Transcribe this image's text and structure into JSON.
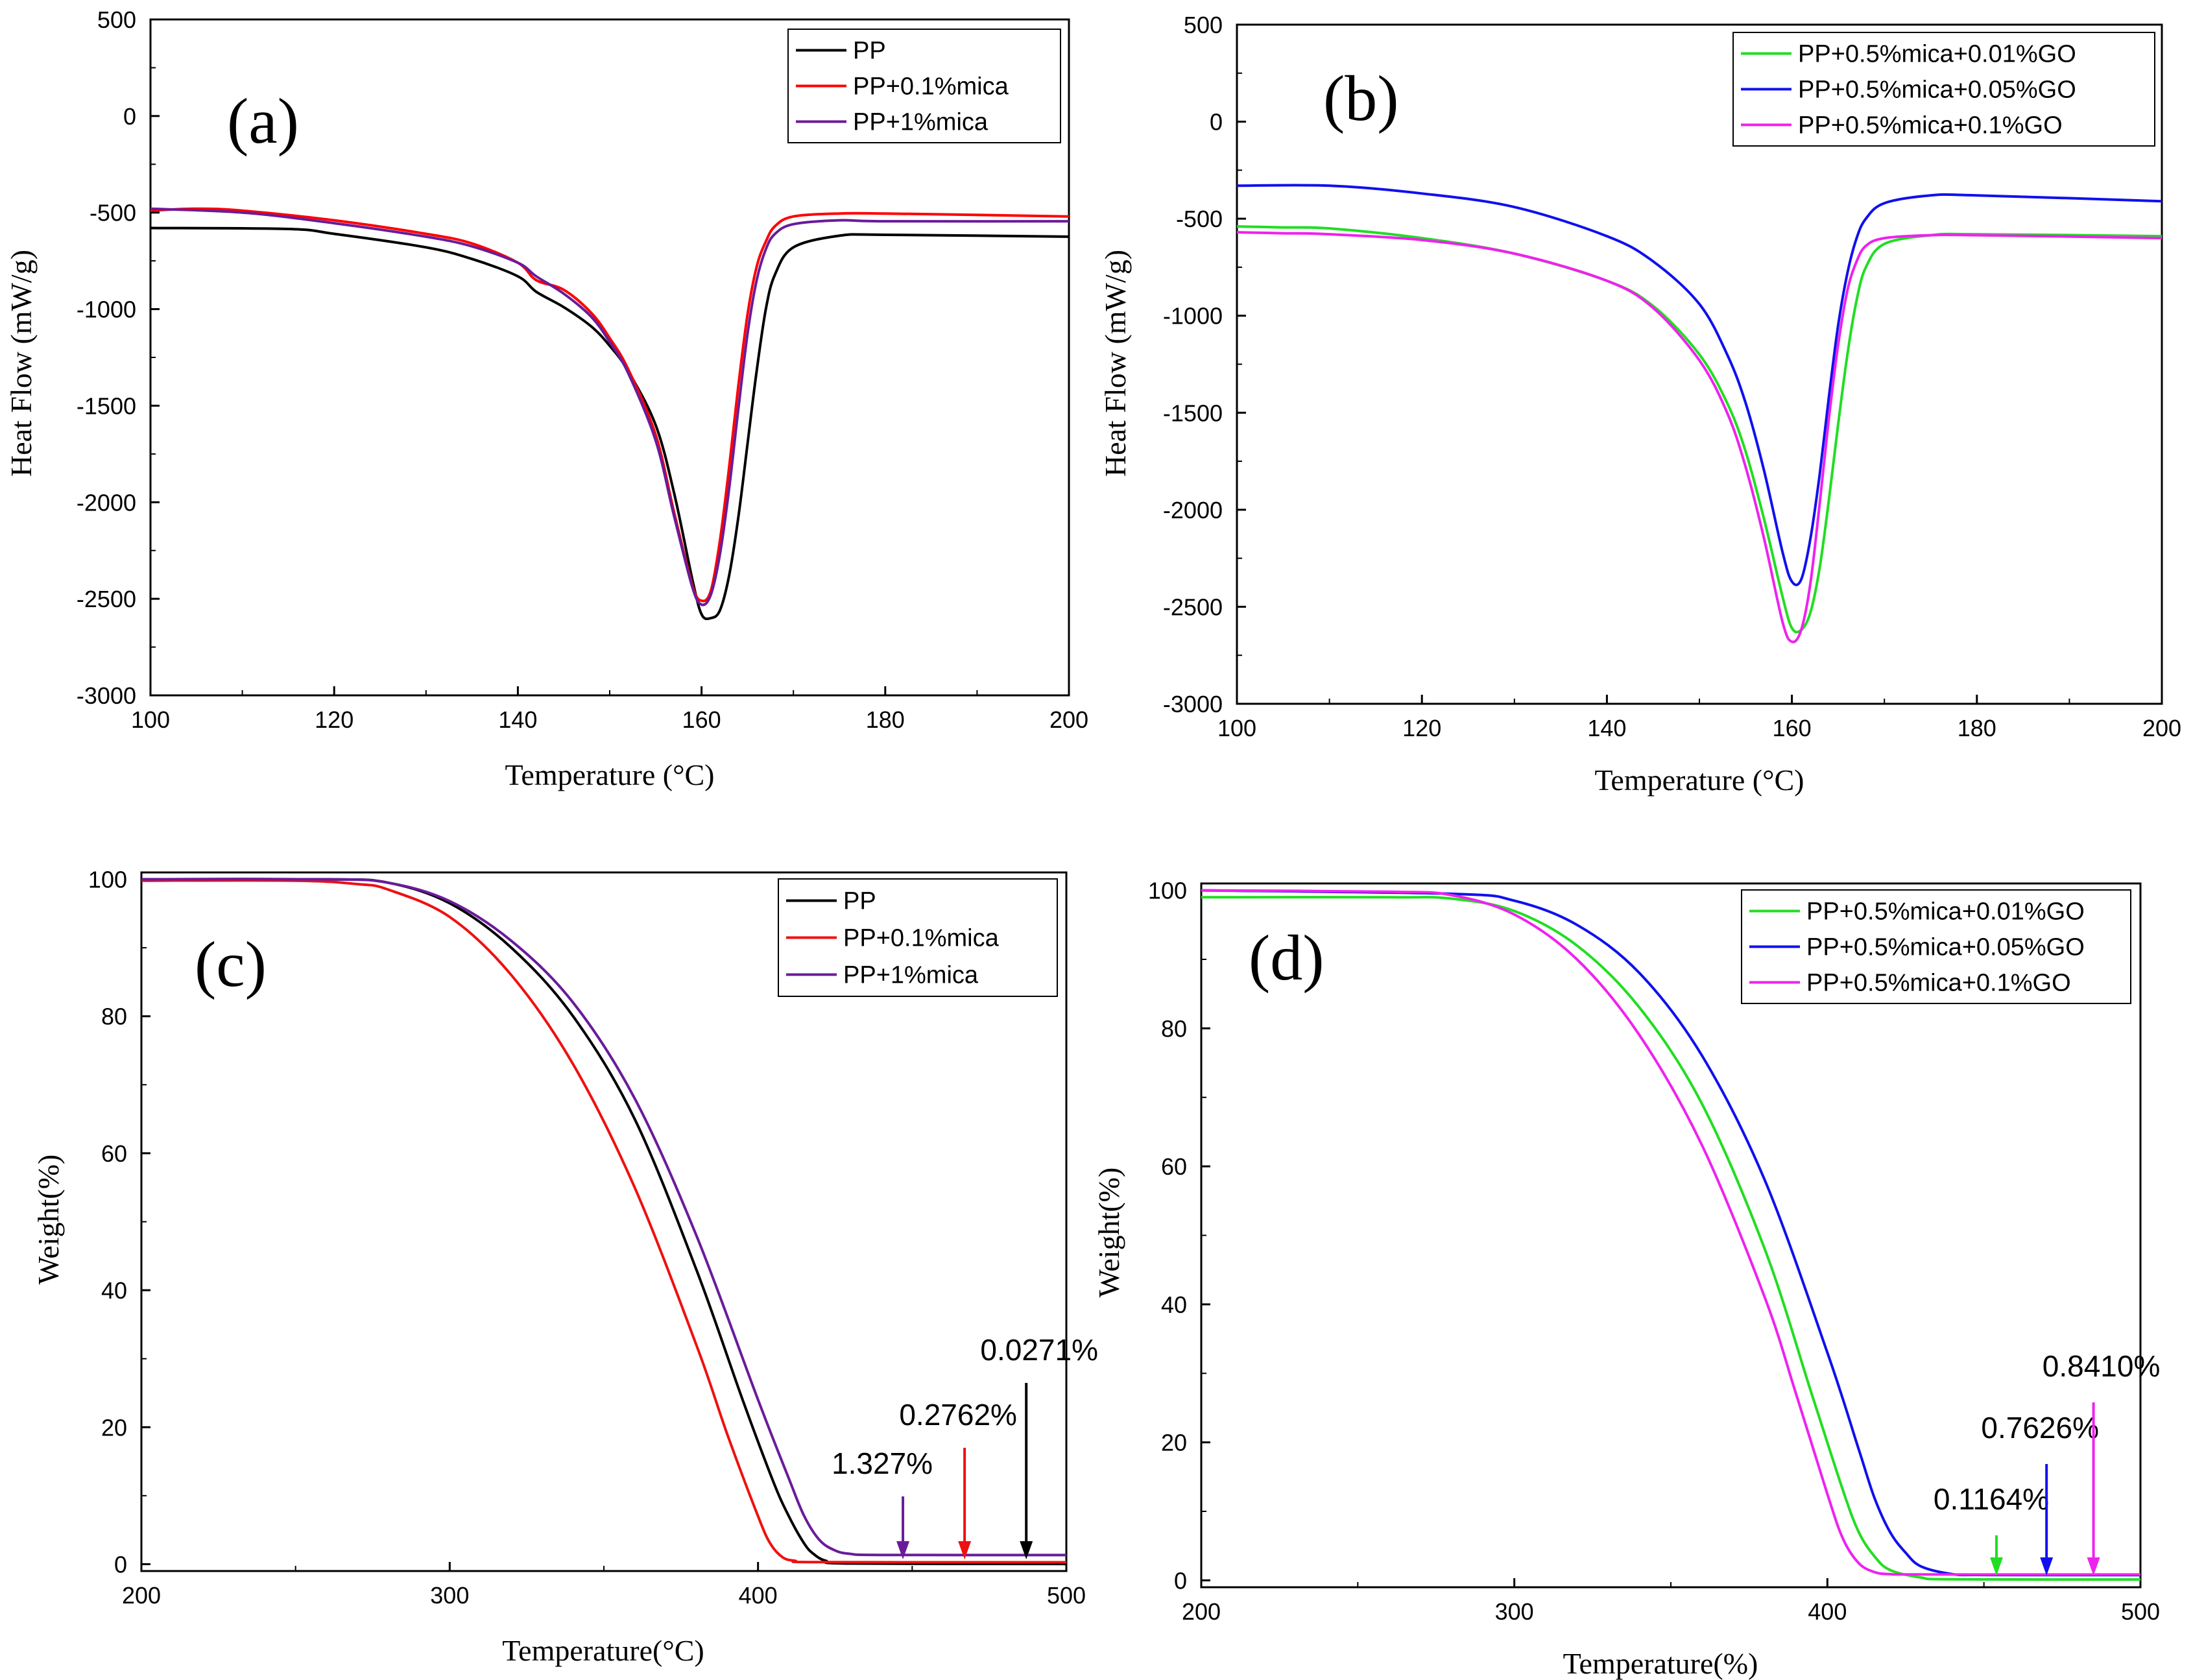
{
  "chart_data": [
    {
      "panel": "(a)",
      "type": "line",
      "xlabel": "Temperature (°C)",
      "ylabel": "Heat Flow (mW/g)",
      "xlim": [
        100,
        200
      ],
      "ylim": [
        -3000,
        500
      ],
      "xticks": [
        100,
        120,
        140,
        160,
        180,
        200
      ],
      "yticks": [
        500,
        0,
        -500,
        -1000,
        -1500,
        -2000,
        -2500,
        -3000
      ],
      "legend_position": "top-right",
      "series": [
        {
          "name": "PP",
          "color": "#000000",
          "x": [
            100,
            115,
            120,
            130,
            135,
            140,
            142,
            145,
            148,
            150,
            152,
            155,
            157,
            159,
            160,
            161,
            162,
            163,
            164,
            165,
            166,
            167,
            168,
            170,
            175,
            180,
            200
          ],
          "y": [
            -580,
            -585,
            -610,
            -680,
            -740,
            -830,
            -910,
            -990,
            -1090,
            -1190,
            -1320,
            -1600,
            -1950,
            -2400,
            -2580,
            -2600,
            -2560,
            -2380,
            -2080,
            -1700,
            -1320,
            -1000,
            -820,
            -680,
            -620,
            -615,
            -625
          ]
        },
        {
          "name": "PP+0.1%mica",
          "color": "#ff0000",
          "x": [
            100,
            105,
            110,
            120,
            130,
            135,
            140,
            142,
            145,
            148,
            150,
            152,
            155,
            157,
            159,
            160,
            161,
            162,
            163,
            164,
            165,
            166,
            167,
            168,
            170,
            175,
            180,
            200
          ],
          "y": [
            -490,
            -480,
            -490,
            -540,
            -610,
            -660,
            -760,
            -850,
            -900,
            -1020,
            -1150,
            -1310,
            -1650,
            -2050,
            -2430,
            -2510,
            -2460,
            -2200,
            -1820,
            -1400,
            -1030,
            -780,
            -650,
            -570,
            -520,
            -505,
            -505,
            -520
          ]
        },
        {
          "name": "PP+1%mica",
          "color": "#6a1b9a",
          "x": [
            100,
            110,
            120,
            130,
            135,
            140,
            142,
            145,
            148,
            150,
            152,
            155,
            157,
            159,
            160,
            161,
            162,
            163,
            164,
            165,
            166,
            167,
            168,
            170,
            175,
            180,
            200
          ],
          "y": [
            -480,
            -500,
            -555,
            -625,
            -675,
            -760,
            -830,
            -920,
            -1040,
            -1170,
            -1330,
            -1680,
            -2070,
            -2440,
            -2530,
            -2480,
            -2270,
            -1930,
            -1520,
            -1130,
            -850,
            -690,
            -610,
            -560,
            -540,
            -545,
            -545
          ]
        }
      ]
    },
    {
      "panel": "(b)",
      "type": "line",
      "xlabel": "Temperature (°C)",
      "ylabel": "Heat Flow (mW/g)",
      "xlim": [
        100,
        200
      ],
      "ylim": [
        -3000,
        500
      ],
      "xticks": [
        100,
        120,
        140,
        160,
        180,
        200
      ],
      "yticks": [
        500,
        0,
        -500,
        -1000,
        -1500,
        -2000,
        -2500,
        -3000
      ],
      "legend_position": "top-right",
      "series": [
        {
          "name": "PP+0.5%mica+0.01%GO",
          "color": "#22dd22",
          "x": [
            100,
            105,
            110,
            120,
            130,
            140,
            145,
            150,
            153,
            155,
            157,
            159,
            160,
            161,
            162,
            163,
            164,
            165,
            166,
            167,
            168,
            170,
            175,
            180,
            200
          ],
          "y": [
            -540,
            -545,
            -550,
            -600,
            -680,
            -820,
            -950,
            -1200,
            -1450,
            -1700,
            -2050,
            -2450,
            -2610,
            -2620,
            -2530,
            -2300,
            -1950,
            -1560,
            -1200,
            -920,
            -750,
            -630,
            -585,
            -580,
            -590
          ]
        },
        {
          "name": "PP+0.5%mica+0.05%GO",
          "color": "#1010ee",
          "x": [
            100,
            110,
            120,
            130,
            140,
            145,
            150,
            153,
            155,
            157,
            159,
            160,
            161,
            162,
            163,
            164,
            165,
            166,
            167,
            168,
            170,
            175,
            180,
            200
          ],
          "y": [
            -330,
            -330,
            -370,
            -440,
            -590,
            -720,
            -940,
            -1200,
            -1450,
            -1800,
            -2220,
            -2370,
            -2360,
            -2150,
            -1820,
            -1420,
            -1050,
            -780,
            -600,
            -500,
            -420,
            -380,
            -380,
            -410
          ]
        },
        {
          "name": "PP+0.5%mica+0.1%GO",
          "color": "#ee22ee",
          "x": [
            100,
            105,
            110,
            120,
            130,
            140,
            145,
            150,
            153,
            155,
            157,
            159,
            160,
            161,
            162,
            163,
            164,
            165,
            166,
            167,
            168,
            170,
            175,
            180,
            200
          ],
          "y": [
            -570,
            -575,
            -580,
            -610,
            -680,
            -820,
            -960,
            -1230,
            -1500,
            -1780,
            -2150,
            -2580,
            -2680,
            -2620,
            -2380,
            -1970,
            -1530,
            -1150,
            -870,
            -720,
            -640,
            -600,
            -585,
            -585,
            -600
          ]
        }
      ]
    },
    {
      "panel": "(c)",
      "type": "line",
      "xlabel": "Temperature(°C)",
      "ylabel": "Weight(%)",
      "xlim": [
        200,
        500
      ],
      "ylim": [
        -1,
        101
      ],
      "xticks": [
        200,
        300,
        400,
        500
      ],
      "yticks": [
        0,
        20,
        40,
        60,
        80,
        100
      ],
      "legend_position": "top-right",
      "series": [
        {
          "name": "PP",
          "color": "#000000",
          "x": [
            200,
            260,
            280,
            300,
            320,
            340,
            360,
            380,
            395,
            405,
            410,
            415,
            418,
            422,
            430,
            500
          ],
          "y": [
            100,
            100,
            99.5,
            96.5,
            90,
            80,
            65,
            43,
            24,
            12,
            7,
            3,
            1.5,
            0.5,
            0.1,
            0.03
          ]
        },
        {
          "name": "PP+0.1%mica",
          "color": "#ee1111",
          "x": [
            200,
            250,
            270,
            280,
            300,
            320,
            340,
            360,
            380,
            390,
            400,
            404,
            408,
            412,
            420,
            500
          ],
          "y": [
            99.8,
            99.8,
            99.3,
            98.5,
            94.5,
            86,
            73,
            55,
            32,
            19,
            7,
            3,
            1,
            0.5,
            0.3,
            0.28
          ]
        },
        {
          "name": "PP+1%mica",
          "color": "#6a1b9a",
          "x": [
            200,
            260,
            280,
            300,
            320,
            340,
            360,
            380,
            400,
            410,
            415,
            420,
            425,
            430,
            440,
            500
          ],
          "y": [
            100,
            100,
            99.5,
            96.8,
            91,
            82,
            68,
            48,
            24,
            12.5,
            7,
            3.5,
            2,
            1.5,
            1.35,
            1.33
          ]
        }
      ],
      "annotations": [
        {
          "text": "1.327%",
          "x": 447,
          "color": "#6a1b9a"
        },
        {
          "text": "0.2762%",
          "x": 467,
          "color": "#ee1111"
        },
        {
          "text": "0.0271%",
          "x": 487,
          "color": "#000000"
        }
      ]
    },
    {
      "panel": "(d)",
      "type": "line",
      "xlabel": "Temperature(%)",
      "ylabel": "Weight(%)",
      "xlim": [
        200,
        500
      ],
      "ylim": [
        -1,
        101
      ],
      "xticks": [
        200,
        300,
        400,
        500
      ],
      "yticks": [
        0,
        20,
        40,
        60,
        80,
        100
      ],
      "legend_position": "top-right",
      "series": [
        {
          "name": "PP+0.5%mica+0.01%GO",
          "color": "#22dd22",
          "x": [
            200,
            260,
            280,
            300,
            320,
            340,
            360,
            380,
            395,
            405,
            410,
            415,
            420,
            430,
            440,
            500
          ],
          "y": [
            99,
            99,
            98.8,
            97,
            92,
            83,
            69,
            48,
            27,
            13,
            7,
            3.5,
            1.5,
            0.4,
            0.15,
            0.12
          ]
        },
        {
          "name": "PP+0.5%mica+0.05%GO",
          "color": "#1010ee",
          "x": [
            200,
            280,
            300,
            320,
            340,
            360,
            380,
            400,
            410,
            415,
            420,
            425,
            430,
            440,
            450,
            500
          ],
          "y": [
            100,
            99.5,
            98.5,
            95,
            88,
            76,
            58,
            33,
            19,
            12,
            7,
            4,
            2,
            0.9,
            0.78,
            0.76
          ]
        },
        {
          "name": "PP+0.5%mica+0.1%GO",
          "color": "#ee22ee",
          "x": [
            200,
            260,
            280,
            300,
            320,
            340,
            360,
            380,
            390,
            400,
            405,
            410,
            415,
            420,
            430,
            500
          ],
          "y": [
            100,
            99.8,
            99.3,
            96.5,
            90,
            79,
            63,
            41,
            27,
            12.5,
            6,
            2.5,
            1.2,
            0.9,
            0.85,
            0.84
          ]
        }
      ],
      "annotations": [
        {
          "text": "0.1164%",
          "x": 454,
          "color": "#22dd22"
        },
        {
          "text": "0.7626%",
          "x": 470,
          "color": "#1010ee"
        },
        {
          "text": "0.8410%",
          "x": 485,
          "color": "#ee22ee"
        }
      ]
    }
  ]
}
